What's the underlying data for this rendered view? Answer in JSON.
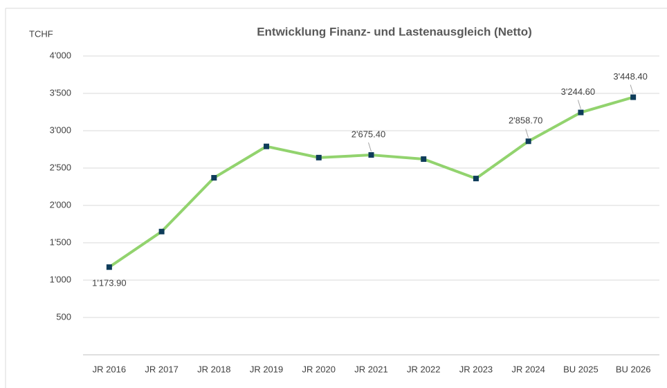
{
  "chart_data": {
    "type": "line",
    "title": "Entwicklung Finanz- und Lastenausgleich (Netto)",
    "y_label": "TCHF",
    "categories": [
      "JR 2016",
      "JR 2017",
      "JR 2018",
      "JR 2019",
      "JR 2020",
      "JR 2021",
      "JR 2022",
      "JR 2023",
      "JR 2024",
      "BU 2025",
      "BU 2026"
    ],
    "series": [
      {
        "name": "Netto",
        "color": "#92d36e",
        "marker_color": "#0e3c5a",
        "values": [
          1173.9,
          1650,
          2370,
          2790,
          2640,
          2675.4,
          2620,
          2360,
          2858.7,
          3244.6,
          3448.4
        ],
        "value_labels": [
          "1'173.90",
          null,
          null,
          null,
          null,
          "2'675.40",
          null,
          null,
          "2'858.70",
          "3'244.60",
          "3'448.40"
        ]
      }
    ],
    "ylim": [
      0,
      4000
    ],
    "yticks": [
      500,
      {
        "value": 1000,
        "label": "1'000"
      },
      {
        "value": 1500,
        "label": "1'500"
      },
      {
        "value": 2000,
        "label": "2'000"
      },
      {
        "value": 2500,
        "label": "2'500"
      },
      {
        "value": 3000,
        "label": "3'000"
      },
      {
        "value": 3500,
        "label": "3'500"
      },
      {
        "value": 4000,
        "label": "4'000"
      }
    ],
    "grid": true
  }
}
